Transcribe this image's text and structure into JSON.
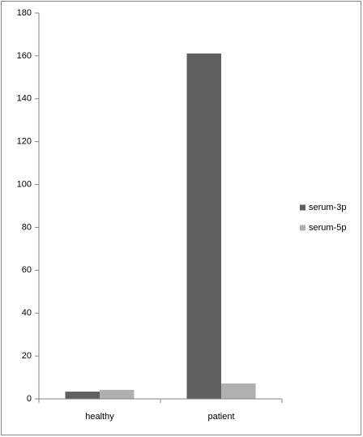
{
  "chart_data": {
    "type": "bar",
    "categories": [
      "healthy",
      "patient"
    ],
    "series": [
      {
        "name": "serum-3p",
        "color": "#606060",
        "values": [
          3.4,
          161.1
        ]
      },
      {
        "name": "serum-5p",
        "color": "#b0b0b0",
        "values": [
          4.2,
          7.2
        ]
      }
    ],
    "ylim": [
      0,
      180
    ],
    "yticks": [
      0,
      20,
      40,
      60,
      80,
      100,
      120,
      140,
      160,
      180
    ],
    "grid": false,
    "legend": "right"
  }
}
